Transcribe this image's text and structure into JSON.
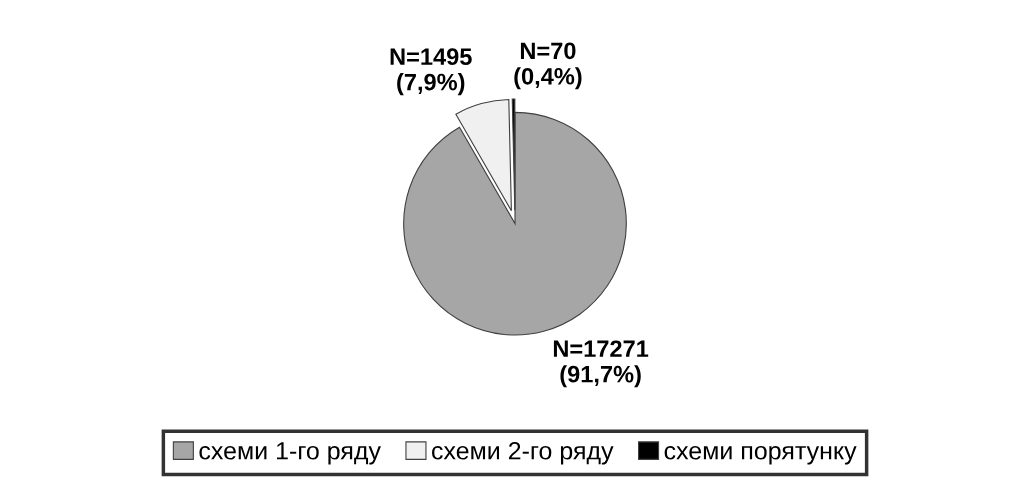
{
  "chart_data": {
    "type": "pie",
    "categories": [
      "схеми 1-го ряду",
      "схеми 2-го ряду",
      "схеми порятунку"
    ],
    "values": [
      17271,
      1495,
      70
    ],
    "colors": [
      "#a6a6a6",
      "#f0f0f0",
      "#000000"
    ],
    "value_labels": [
      "N=17271\n(91,7%)",
      "N=1495\n(7,9%)",
      "N=70\n(0,4%)"
    ],
    "legend": "bottom"
  }
}
